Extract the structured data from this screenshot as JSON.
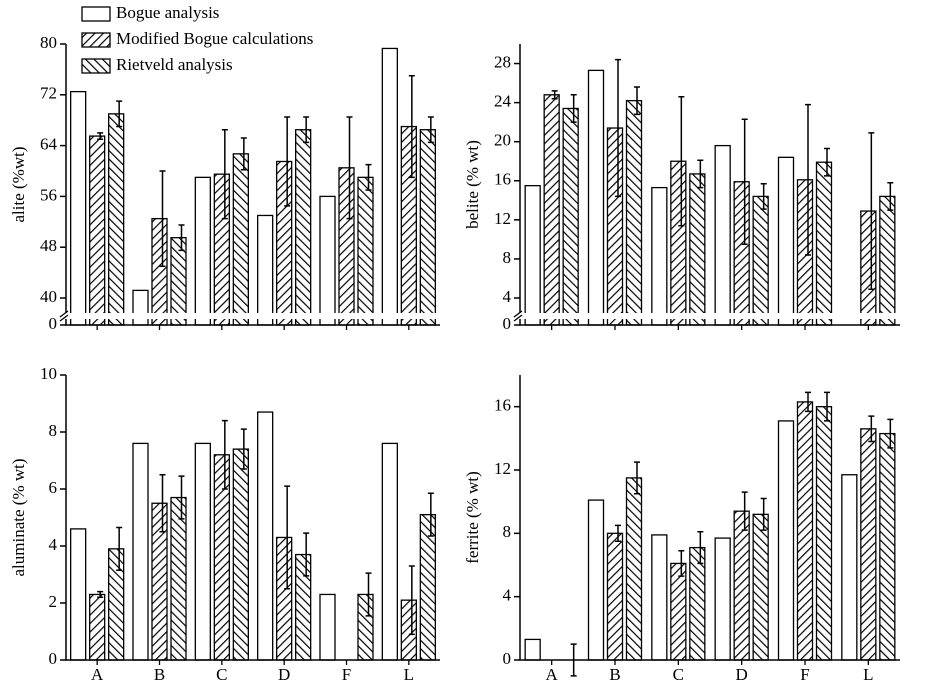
{
  "chart_data": [
    {
      "type": "bar",
      "y_label": "alite (%wt)",
      "categories": [
        null,
        null,
        null,
        null,
        null,
        null
      ],
      "ylim": [
        0,
        80
      ],
      "ybreak": [
        0,
        40
      ],
      "yticks": [
        0,
        40,
        48,
        56,
        64,
        72,
        80
      ],
      "series": [
        {
          "name": "Bogue analysis",
          "color": "#000000",
          "pattern": "none",
          "values": [
            72.5,
            41.2,
            59,
            53,
            56,
            79.3
          ],
          "errors": [
            null,
            null,
            null,
            null,
            null,
            null
          ]
        },
        {
          "name": "Modified Bogue calculations",
          "color": "#000000",
          "pattern": "forward",
          "values": [
            65.5,
            52.5,
            59.5,
            61.5,
            60.5,
            67
          ],
          "errors": [
            0.5,
            7.5,
            7,
            7,
            8,
            8
          ]
        },
        {
          "name": "Rietveld analysis",
          "color": "#000000",
          "pattern": "back",
          "values": [
            69,
            49.5,
            62.7,
            66.5,
            59,
            66.5
          ],
          "errors": [
            2,
            2,
            2.5,
            2,
            2,
            2
          ]
        }
      ]
    },
    {
      "type": "bar",
      "y_label": "belite (% wt)",
      "categories": [
        null,
        null,
        null,
        null,
        null,
        null
      ],
      "ylim": [
        0,
        30
      ],
      "ybreak": [
        0,
        4
      ],
      "yticks": [
        0,
        4,
        8,
        12,
        16,
        20,
        24,
        28
      ],
      "series": [
        {
          "color": "#000000",
          "pattern": "none",
          "values": [
            15.5,
            27.3,
            15.3,
            19.6,
            18.4,
            null
          ],
          "errors": [
            null,
            null,
            null,
            null,
            null,
            null
          ]
        },
        {
          "color": "#000000",
          "pattern": "forward",
          "values": [
            24.8,
            21.4,
            18,
            15.9,
            16.1,
            12.9
          ],
          "errors": [
            0.4,
            7,
            6.6,
            6.4,
            7.7,
            8
          ]
        },
        {
          "color": "#000000",
          "pattern": "back",
          "values": [
            23.4,
            24.2,
            16.7,
            14.4,
            17.9,
            14.4
          ],
          "errors": [
            1.4,
            1.4,
            1.4,
            1.3,
            1.4,
            1.4
          ]
        }
      ]
    },
    {
      "type": "bar",
      "y_label": "aluminate (% wt)",
      "categories": [
        "A",
        "B",
        "C",
        "D",
        "F",
        "L"
      ],
      "ylim": [
        0,
        10
      ],
      "yticks": [
        0,
        2,
        4,
        6,
        8,
        10
      ],
      "series": [
        {
          "color": "#000000",
          "pattern": "none",
          "values": [
            4.6,
            7.6,
            7.6,
            8.7,
            2.3,
            7.6
          ],
          "errors": [
            null,
            null,
            null,
            null,
            null,
            null
          ]
        },
        {
          "color": "#000000",
          "pattern": "forward",
          "values": [
            2.3,
            5.5,
            7.2,
            4.3,
            null,
            2.1
          ],
          "errors": [
            0.1,
            1,
            1.2,
            1.8,
            null,
            1.2
          ]
        },
        {
          "color": "#000000",
          "pattern": "back",
          "values": [
            3.9,
            5.7,
            7.4,
            3.7,
            2.3,
            5.1
          ],
          "errors": [
            0.75,
            0.75,
            0.7,
            0.75,
            0.75,
            0.75
          ]
        }
      ]
    },
    {
      "type": "bar",
      "y_label": "ferrite (% wt)",
      "categories": [
        "A",
        "B",
        "C",
        "D",
        "F",
        "L"
      ],
      "ylim": [
        0,
        18
      ],
      "yticks": [
        0,
        4,
        8,
        12,
        16
      ],
      "series": [
        {
          "color": "#000000",
          "pattern": "none",
          "values": [
            1.3,
            10.1,
            7.9,
            7.7,
            15.1,
            11.7
          ],
          "errors": [
            null,
            null,
            null,
            null,
            null,
            null
          ]
        },
        {
          "color": "#000000",
          "pattern": "forward",
          "values": [
            null,
            8,
            6.1,
            9.4,
            16.3,
            14.6
          ],
          "errors": [
            null,
            0.5,
            0.8,
            1.2,
            0.6,
            0.8
          ]
        },
        {
          "color": "#000000",
          "pattern": "back",
          "values": [
            0,
            11.5,
            7.1,
            9.2,
            16,
            14.3
          ],
          "errors": [
            1,
            1,
            1,
            1,
            0.9,
            0.9
          ]
        }
      ]
    }
  ]
}
